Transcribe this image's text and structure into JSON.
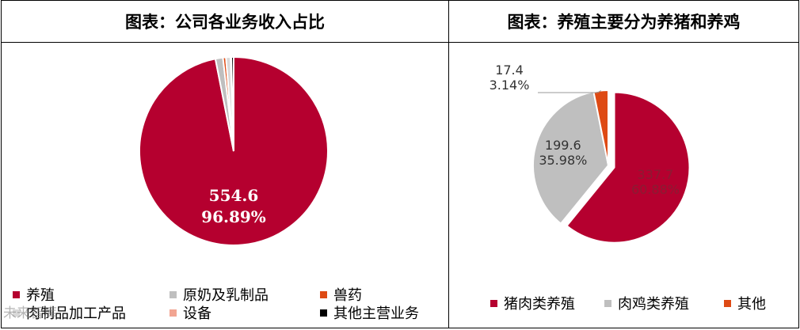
{
  "left_title": "图表：公司各业务收入占比",
  "right_title": "图表：养殖主要分为养猪和养鸡",
  "watermark": "未来智库",
  "chart_data": [
    {
      "type": "pie",
      "title": "图表：公司各业务收入占比",
      "series": [
        {
          "name": "养殖",
          "value": 554.6,
          "percent": "96.89%",
          "color": "#b5002f"
        },
        {
          "name": "原奶及乳制品",
          "value": 7.4,
          "percent": "1.29%",
          "color": "#bfbfbf"
        },
        {
          "name": "兽药",
          "value": 2.9,
          "percent": "0.51%",
          "color": "#de4a14"
        },
        {
          "name": "肉制品加工产品",
          "value": 4.6,
          "percent": "0.80%",
          "color": "#d9d9d9"
        },
        {
          "name": "设备",
          "value": 0.6,
          "percent": "0.10%",
          "color": "#f2a592"
        },
        {
          "name": "其他主营业务",
          "value": 2.3,
          "percent": "0.41%",
          "color": "#000000"
        }
      ],
      "labels": [
        {
          "value_text": "554.6",
          "percent_text": "96.89%"
        }
      ]
    },
    {
      "type": "pie",
      "title": "图表：养殖主要分为养猪和养鸡",
      "series": [
        {
          "name": "猪肉类养殖",
          "value": 337.7,
          "percent": "60.88%",
          "color": "#b5002f"
        },
        {
          "name": "肉鸡类养殖",
          "value": 199.6,
          "percent": "35.98%",
          "color": "#bfbfbf"
        },
        {
          "name": "其他",
          "value": 17.4,
          "percent": "3.14%",
          "color": "#de4a14"
        }
      ],
      "labels": [
        {
          "value_text": "337.7",
          "percent_text": "60.88%"
        },
        {
          "value_text": "199.6",
          "percent_text": "35.98%"
        },
        {
          "value_text": "17.4",
          "percent_text": "3.14%"
        }
      ]
    }
  ]
}
